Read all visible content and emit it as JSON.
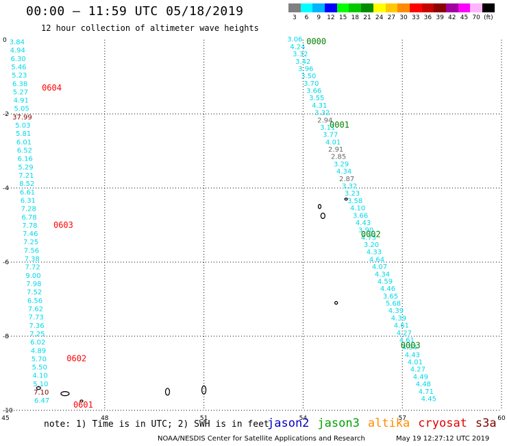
{
  "header": {
    "title": "00:00 – 11:59 UTC 05/18/2019",
    "subtitle": "12 hour collection of altimeter wave heights"
  },
  "colorbar": {
    "unit": "(ft)",
    "bins": [
      {
        "label": "3",
        "color": "#808080"
      },
      {
        "label": "6",
        "color": "#00ffff"
      },
      {
        "label": "9",
        "color": "#00b4ff"
      },
      {
        "label": "12",
        "color": "#0000ff"
      },
      {
        "label": "15",
        "color": "#00ff00"
      },
      {
        "label": "18",
        "color": "#00c800"
      },
      {
        "label": "21",
        "color": "#008c00"
      },
      {
        "label": "24",
        "color": "#ffff00"
      },
      {
        "label": "27",
        "color": "#ffc800"
      },
      {
        "label": "30",
        "color": "#ff8c00"
      },
      {
        "label": "33",
        "color": "#ff0000"
      },
      {
        "label": "36",
        "color": "#c80000"
      },
      {
        "label": "39",
        "color": "#8c0000"
      },
      {
        "label": "42",
        "color": "#a000a0"
      },
      {
        "label": "45",
        "color": "#ff00ff"
      },
      {
        "label": "70",
        "color": "#ffb4ff"
      },
      {
        "label": "",
        "color": "#000000"
      }
    ]
  },
  "map": {
    "lon_ticks": [
      "45",
      "48",
      "51",
      "54",
      "57",
      "60"
    ],
    "lat_ticks": [
      "0",
      "-2",
      "-4",
      "-6",
      "-8",
      "-10"
    ],
    "tracks": [
      {
        "start_lon": 45.35,
        "start_lat": -0.12,
        "end_lon": 46.1,
        "end_lat": -9.8,
        "readings": [
          "3.84",
          "4.94",
          "6.30",
          "5.46",
          "5.23",
          "6.38",
          "5.27",
          "4.91",
          "5.05",
          "37.99",
          "5.03",
          "5.81",
          "6.01",
          "6.52",
          "6.16",
          "5.29",
          "7.21",
          "8.52",
          "6.61",
          "6.31",
          "7.28",
          "6.78",
          "7.78",
          "7.46",
          "7.25",
          "7.56",
          "7.38",
          "7.72",
          "9.00",
          "7.98",
          "7.52",
          "6.56",
          "7.62",
          "7.73",
          "7.36",
          "7.25",
          "6.02",
          "4.89",
          "5.70",
          "5.50",
          "4.10",
          "5.10",
          "7.10",
          "6.47"
        ],
        "colors": [
          "c",
          "c",
          "c",
          "c",
          "c",
          "c",
          "c",
          "c",
          "c",
          "k",
          "c",
          "c",
          "c",
          "c",
          "c",
          "c",
          "c",
          "c",
          "c",
          "c",
          "c",
          "c",
          "c",
          "c",
          "c",
          "c",
          "c",
          "c",
          "c",
          "c",
          "c",
          "c",
          "c",
          "c",
          "c",
          "c",
          "c",
          "c",
          "c",
          "c",
          "c",
          "c",
          "k",
          "c"
        ],
        "times": [
          {
            "label": "0604",
            "lon": 46.1,
            "lat": -1.3
          },
          {
            "label": "0603",
            "lon": 46.45,
            "lat": -5.0
          },
          {
            "label": "0602",
            "lon": 46.85,
            "lat": -8.6
          },
          {
            "label": "0601",
            "lon": 47.05,
            "lat": -9.85
          }
        ],
        "time_color": "#ff0000"
      },
      {
        "start_lon": 53.75,
        "start_lat": -0.05,
        "end_lon": 57.8,
        "end_lat": -9.75,
        "readings": [
          "3.06",
          "4.24",
          "3.32",
          "3.42",
          "3.96",
          "3.50",
          "3.70",
          "3.66",
          "3.55",
          "4.31",
          "3.32",
          "2.94",
          "3.11",
          "3.77",
          "4.01",
          "2.91",
          "2.85",
          "3.29",
          "4.34",
          "2.87",
          "3.32",
          "3.23",
          "3.58",
          "4.10",
          "3.66",
          "4.43",
          "3.90",
          "4.73",
          "3.20",
          "4.33",
          "4.64",
          "4.07",
          "4.34",
          "4.59",
          "4.46",
          "3.65",
          "5.68",
          "4.39",
          "4.39",
          "4.61",
          "4.27",
          "4.61",
          "4.94",
          "4.43",
          "4.01",
          "4.27",
          "4.49",
          "4.48",
          "4.71",
          "4.45"
        ],
        "colors": [
          "c",
          "c",
          "c",
          "c",
          "c",
          "c",
          "c",
          "c",
          "c",
          "c",
          "c",
          "g",
          "c",
          "c",
          "c",
          "g",
          "g",
          "c",
          "c",
          "g",
          "c",
          "c",
          "c",
          "c",
          "c",
          "c",
          "c",
          "c",
          "c",
          "c",
          "c",
          "c",
          "c",
          "c",
          "c",
          "c",
          "c",
          "c",
          "c",
          "c",
          "c",
          "c",
          "c",
          "c",
          "c",
          "c",
          "c",
          "c",
          "c",
          "c"
        ],
        "times": [
          {
            "label": "0000",
            "lon": 54.1,
            "lat": -0.05
          },
          {
            "label": "0001",
            "lon": 54.8,
            "lat": -2.3
          },
          {
            "label": "0002",
            "lon": 55.75,
            "lat": -5.25
          },
          {
            "label": "0003",
            "lon": 56.95,
            "lat": -8.25
          }
        ],
        "time_color": "#008000"
      }
    ]
  },
  "footer": {
    "note": "note: 1) Time is in UTC; 2) SWH is in feet",
    "satellites": [
      {
        "label": "jason2",
        "color": "#0000c0"
      },
      {
        "label": "jason3",
        "color": "#00a000"
      },
      {
        "label": "altika",
        "color": "#ff8c00"
      },
      {
        "label": "cryosat",
        "color": "#e00000"
      },
      {
        "label": "s3a",
        "color": "#800000"
      }
    ],
    "credit": "NOAA/NESDIS Center for Satellite Applications and Research",
    "timestamp": "May 19 12:27:12 UTC 2019"
  }
}
